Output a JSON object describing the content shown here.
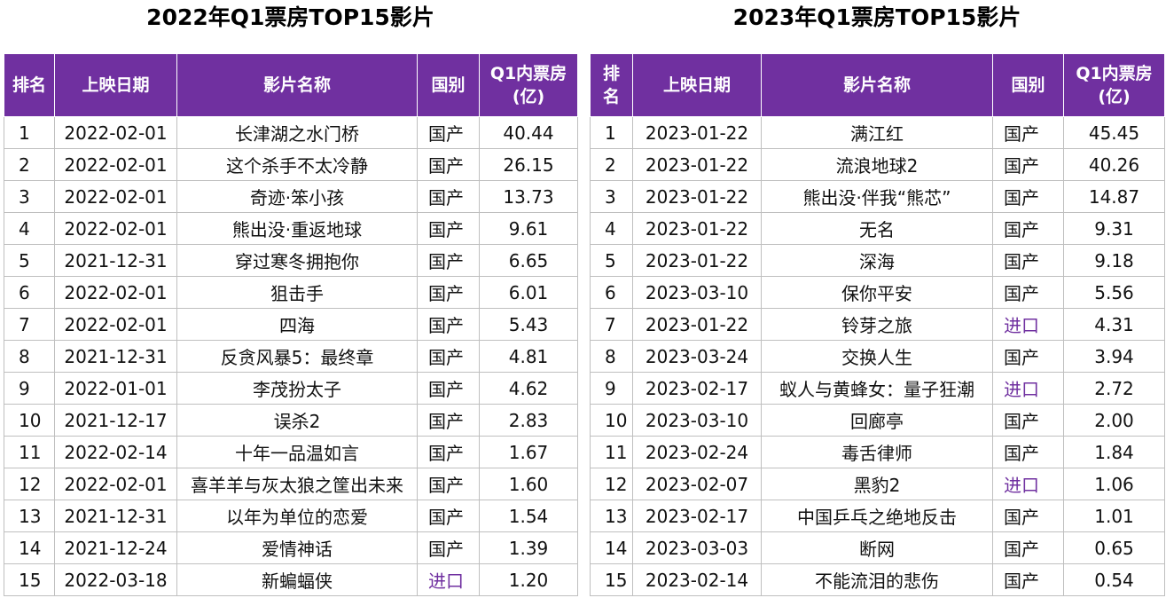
{
  "tables": [
    {
      "title": "2022年Q1票房TOP15影片",
      "headers": [
        "排名",
        "上映日期",
        "影片名称",
        "国别",
        "Q1内票房\n(亿)"
      ],
      "rows": [
        [
          "1",
          "2022-02-01",
          "长津湖之水门桥",
          "国产",
          "40.44"
        ],
        [
          "2",
          "2022-02-01",
          "这个杀手不太冷静",
          "国产",
          "26.15"
        ],
        [
          "3",
          "2022-02-01",
          "奇迹·笨小孩",
          "国产",
          "13.73"
        ],
        [
          "4",
          "2022-02-01",
          "熊出没·重返地球",
          "国产",
          "9.61"
        ],
        [
          "5",
          "2021-12-31",
          "穿过寒冬拥抱你",
          "国产",
          "6.65"
        ],
        [
          "6",
          "2022-02-01",
          "狙击手",
          "国产",
          "6.01"
        ],
        [
          "7",
          "2022-02-01",
          "四海",
          "国产",
          "5.43"
        ],
        [
          "8",
          "2021-12-31",
          "反贪风暴5：最终章",
          "国产",
          "4.81"
        ],
        [
          "9",
          "2022-01-01",
          "李茂扮太子",
          "国产",
          "4.62"
        ],
        [
          "10",
          "2021-12-17",
          "误杀2",
          "国产",
          "2.83"
        ],
        [
          "11",
          "2022-02-14",
          "十年一品温如言",
          "国产",
          "1.67"
        ],
        [
          "12",
          "2022-02-01",
          "喜羊羊与灰太狼之筐出未来",
          "国产",
          "1.60"
        ],
        [
          "13",
          "2021-12-31",
          "以年为单位的恋爱",
          "国产",
          "1.54"
        ],
        [
          "14",
          "2021-12-24",
          "爱情神话",
          "国产",
          "1.39"
        ],
        [
          "15",
          "2022-03-18",
          "新蝙蝠侠",
          "进口",
          "1.20"
        ]
      ]
    },
    {
      "title": "2023年Q1票房TOP15影片",
      "headers": [
        "排\n名",
        "上映日期",
        "影片名称",
        "国别",
        "Q1内票房\n(亿)"
      ],
      "rows": [
        [
          "1",
          "2023-01-22",
          "满江红",
          "国产",
          "45.45"
        ],
        [
          "2",
          "2023-01-22",
          "流浪地球2",
          "国产",
          "40.26"
        ],
        [
          "3",
          "2023-01-22",
          "熊出没·伴我“熊芯”",
          "国产",
          "14.87"
        ],
        [
          "4",
          "2023-01-22",
          "无名",
          "国产",
          "9.31"
        ],
        [
          "5",
          "2023-01-22",
          "深海",
          "国产",
          "9.18"
        ],
        [
          "6",
          "2023-03-10",
          "保你平安",
          "国产",
          "5.56"
        ],
        [
          "7",
          "2023-01-22",
          "铃芽之旅",
          "进口",
          "4.31"
        ],
        [
          "8",
          "2023-03-24",
          "交换人生",
          "国产",
          "3.94"
        ],
        [
          "9",
          "2023-02-17",
          "蚁人与黄蜂女：量子狂潮",
          "进口",
          "2.72"
        ],
        [
          "10",
          "2023-03-10",
          "回廊亭",
          "国产",
          "2.00"
        ],
        [
          "11",
          "2023-02-24",
          "毒舌律师",
          "国产",
          "1.84"
        ],
        [
          "12",
          "2023-02-07",
          "黑豹2",
          "进口",
          "1.06"
        ],
        [
          "13",
          "2023-02-17",
          "中国乒乓之绝地反击",
          "国产",
          "1.01"
        ],
        [
          "14",
          "2023-03-03",
          "断网",
          "国产",
          "0.65"
        ],
        [
          "15",
          "2023-02-14",
          "不能流泪的悲伤",
          "国产",
          "0.54"
        ]
      ]
    }
  ],
  "colors": {
    "header_bg": "#7030A0",
    "import_text": "#7030A0",
    "grid": "#bfbfbf"
  }
}
